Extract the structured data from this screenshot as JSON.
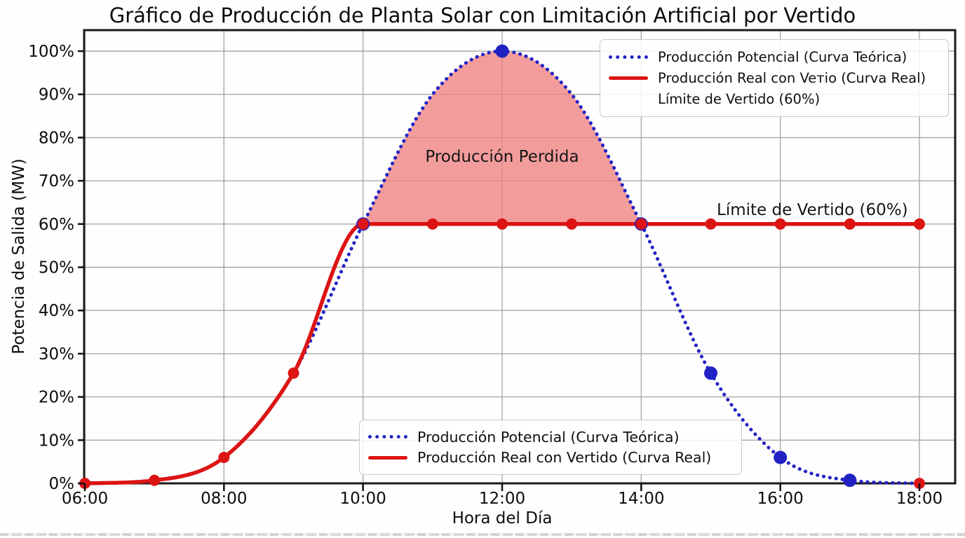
{
  "title": "Gráfico de Producción de Planta Solar con Limitación Artificial por Vertido",
  "axes": {
    "x_label": "Hora del Día",
    "y_label": "Potencia de Salida (MW)",
    "x_ticks": [
      "06:00",
      "08:00",
      "10:00",
      "12:00",
      "14:00",
      "16:00",
      "18:00"
    ],
    "y_ticks": [
      "0%",
      "10%",
      "20%",
      "30%",
      "40%",
      "50%",
      "60%",
      "70%",
      "80%",
      "90%",
      "100%"
    ]
  },
  "annotations": {
    "lost_production": "Producción Perdida",
    "limit_line": "Límite de Vertido (60%)"
  },
  "legend_top": {
    "items": [
      {
        "label": "Producción Potencial (Curva Teórica)",
        "sample": "dotted-blue"
      },
      {
        "label": "Producción Real con Veтio (Curva Real)",
        "sample": "solid-red"
      },
      {
        "label": "Límite de Vertido (60%)",
        "sample": "none"
      }
    ]
  },
  "legend_bottom": {
    "items": [
      {
        "label": "Producción Potencial (Curva Teórica)",
        "sample": "dotted-blue"
      },
      {
        "label": "Producción Real con Vertido (Curva Real)",
        "sample": "solid-red"
      }
    ]
  },
  "colors": {
    "potential_blue": "#2222c4",
    "real_red": "#dc1414",
    "lost_area_pink": "#f08080",
    "grid_gray": "#a8a8a8",
    "axis_black": "#1a1a1a"
  },
  "chart_data": {
    "type": "line",
    "title": "Gráfico de Producción de Planta Solar con Limitación Artificial por Vertido",
    "xlabel": "Hora del Día",
    "ylabel": "Potencia de Salida (MW)",
    "x_hours": [
      6,
      7,
      8,
      9,
      10,
      11,
      12,
      13,
      14,
      15,
      16,
      17,
      18
    ],
    "x_tick_hours": [
      6,
      8,
      10,
      12,
      14,
      16,
      18
    ],
    "x_tick_labels": [
      "06:00",
      "08:00",
      "10:00",
      "12:00",
      "14:00",
      "16:00",
      "18:00"
    ],
    "ylim": [
      0,
      100
    ],
    "y_tick_step": 10,
    "grid": true,
    "series": [
      {
        "name": "Producción Potencial (Curva Teórica)",
        "style": "dotted",
        "color": "#2222c4",
        "values": [
          0,
          0.7,
          6,
          25.5,
          60,
          90,
          100,
          90,
          60,
          25.5,
          6,
          0.7,
          0
        ],
        "marker_points": [
          [
            10,
            60
          ],
          [
            12,
            100
          ],
          [
            14,
            60
          ],
          [
            15,
            25.5
          ],
          [
            16,
            6
          ],
          [
            17,
            0.7
          ]
        ]
      },
      {
        "name": "Producción Real con Vertido (Curva Real)",
        "style": "solid",
        "color": "#dc1414",
        "values": [
          0,
          0.7,
          6,
          25.5,
          60,
          60,
          60,
          60,
          60,
          60,
          60,
          60,
          60
        ],
        "marker_points": [
          [
            6,
            0
          ],
          [
            7,
            0.7
          ],
          [
            8,
            6
          ],
          [
            9,
            25.5
          ],
          [
            10,
            60
          ],
          [
            11,
            60
          ],
          [
            12,
            60
          ],
          [
            13,
            60
          ],
          [
            14,
            60
          ],
          [
            15,
            60
          ],
          [
            16,
            60
          ],
          [
            17,
            60
          ],
          [
            18,
            60
          ],
          [
            18,
            0
          ]
        ]
      }
    ],
    "curtailment_limit_pct": 60,
    "shaded_region": {
      "label": "Producción Perdida",
      "from_hour": 10,
      "to_hour": 14,
      "baseline_pct": 60,
      "fill": "#f08080",
      "fill_opacity": 0.78
    },
    "legend_positions": [
      "upper right",
      "lower center"
    ]
  }
}
